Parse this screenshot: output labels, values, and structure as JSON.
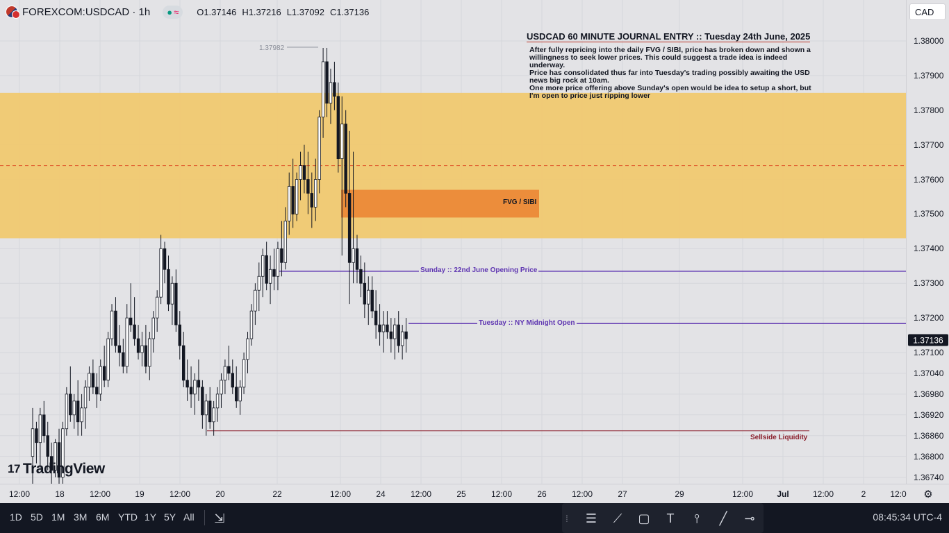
{
  "legend": {
    "symbol": "FOREXCOM:USDCAD · 1h",
    "open": "O1.37146",
    "high": "H1.37216",
    "low": "L1.37092",
    "close": "C1.37136",
    "status_dot": "●",
    "status_wave": "≈"
  },
  "currency_badge": "CAD",
  "journal": {
    "title": "USDCAD 60 MINUTE JOURNAL ENTRY :: Tuesday 24th June, 2025",
    "lines": [
      "After fully repricing into the daily FVG / SIBI, price has broken down and shown a willingness to seek lower prices. This could suggest a trade idea is indeed underway.",
      "Price has consolidated thus far into Tuesday's trading possibly awaiting the USD news big rock at 10am.",
      "One more price offering above Sunday's open would be idea to setup a short, but I'm open to price just ripping lower"
    ]
  },
  "annotations": {
    "fvg_label": "FVG / SIBI",
    "sunday_open_label": "Sunday :: 22nd June Opening Price",
    "tuesday_open_label": "Tuesday :: NY Midnight Open",
    "sellside_label": "Sellside Liquidity",
    "high_label": "1.37982"
  },
  "price_axis": {
    "ticks": [
      "1.38000",
      "1.37900",
      "1.37800",
      "1.37700",
      "1.37600",
      "1.37500",
      "1.37400",
      "1.37300",
      "1.37200",
      "1.37100",
      "1.37040",
      "1.36980",
      "1.36920",
      "1.36860",
      "1.36800",
      "1.36740"
    ],
    "current_price": "1.37136"
  },
  "time_axis": {
    "ticks": [
      "12:00",
      "18",
      "12:00",
      "19",
      "12:00",
      "20",
      "22",
      "12:00",
      "24",
      "12:00",
      "25",
      "12:00",
      "26",
      "12:00",
      "27",
      "29",
      "12:00",
      "Jul",
      "12:00",
      "2",
      "12:0"
    ]
  },
  "logo": {
    "mark": "17",
    "text": "TradingView"
  },
  "bottom_bar": {
    "ranges": [
      "1D",
      "5D",
      "1M",
      "3M",
      "6M",
      "YTD",
      "1Y",
      "5Y",
      "All"
    ],
    "clock": "08:45:34 UTC-4"
  },
  "colors": {
    "zone": "#f0c970",
    "fvg": "#ec8d3b",
    "level_line": "#5e35b1",
    "sellside_line": "#8b1e2b",
    "candle": "#131722",
    "dashed_mid": "#e0572b"
  },
  "chart_data": {
    "type": "candlestick",
    "symbol": "FOREXCOM:USDCAD",
    "interval": "1h",
    "ylim": [
      1.3674,
      1.3808
    ],
    "levels": {
      "premium_zone": [
        1.3743,
        1.3785
      ],
      "premium_zone_mid": 1.3764,
      "fvg_sibi": [
        1.3749,
        1.3757
      ],
      "sunday_open": 1.37335,
      "tuesday_midnight_open": 1.37184,
      "sellside_liquidity": 1.36874,
      "swing_high": 1.37982
    },
    "candles": [
      [
        1.368,
        1.3694,
        1.3672,
        1.3688
      ],
      [
        1.3688,
        1.369,
        1.3678,
        1.3684
      ],
      [
        1.3684,
        1.3694,
        1.3676,
        1.3692
      ],
      [
        1.3692,
        1.3696,
        1.3684,
        1.3686
      ],
      [
        1.3686,
        1.369,
        1.3676,
        1.368
      ],
      [
        1.368,
        1.3684,
        1.3672,
        1.3676
      ],
      [
        1.3676,
        1.3685,
        1.3674,
        1.3684
      ],
      [
        1.3684,
        1.3688,
        1.3672,
        1.3674
      ],
      [
        1.3674,
        1.369,
        1.3672,
        1.3688
      ],
      [
        1.3688,
        1.37,
        1.3686,
        1.3698
      ],
      [
        1.3698,
        1.3706,
        1.369,
        1.3692
      ],
      [
        1.3692,
        1.3698,
        1.3688,
        1.3696
      ],
      [
        1.3696,
        1.3702,
        1.3686,
        1.369
      ],
      [
        1.369,
        1.3698,
        1.3686,
        1.3694
      ],
      [
        1.3694,
        1.3702,
        1.3688,
        1.37
      ],
      [
        1.37,
        1.3706,
        1.3696,
        1.3704
      ],
      [
        1.3704,
        1.3708,
        1.3698,
        1.37
      ],
      [
        1.37,
        1.3704,
        1.3694,
        1.3698
      ],
      [
        1.3698,
        1.3708,
        1.3696,
        1.3706
      ],
      [
        1.3706,
        1.3712,
        1.37,
        1.3702
      ],
      [
        1.3702,
        1.3716,
        1.37,
        1.3714
      ],
      [
        1.3714,
        1.3724,
        1.3712,
        1.3722
      ],
      [
        1.3722,
        1.3726,
        1.371,
        1.3712
      ],
      [
        1.3712,
        1.3718,
        1.3706,
        1.371
      ],
      [
        1.371,
        1.3714,
        1.3704,
        1.3706
      ],
      [
        1.3706,
        1.3724,
        1.3704,
        1.372
      ],
      [
        1.372,
        1.373,
        1.3716,
        1.3718
      ],
      [
        1.3718,
        1.3726,
        1.3712,
        1.3714
      ],
      [
        1.3714,
        1.3718,
        1.3708,
        1.371
      ],
      [
        1.371,
        1.3716,
        1.3706,
        1.3712
      ],
      [
        1.3712,
        1.3718,
        1.3704,
        1.3706
      ],
      [
        1.3706,
        1.3716,
        1.3702,
        1.3714
      ],
      [
        1.3714,
        1.3722,
        1.371,
        1.372
      ],
      [
        1.372,
        1.3728,
        1.3716,
        1.3726
      ],
      [
        1.3726,
        1.3744,
        1.3724,
        1.374
      ],
      [
        1.374,
        1.3742,
        1.373,
        1.3734
      ],
      [
        1.3734,
        1.3738,
        1.3722,
        1.3724
      ],
      [
        1.3724,
        1.3732,
        1.3718,
        1.373
      ],
      [
        1.373,
        1.3734,
        1.3716,
        1.3718
      ],
      [
        1.3718,
        1.3722,
        1.3708,
        1.3712
      ],
      [
        1.3712,
        1.3716,
        1.37,
        1.3702
      ],
      [
        1.3702,
        1.3708,
        1.3696,
        1.37
      ],
      [
        1.37,
        1.3706,
        1.3694,
        1.3698
      ],
      [
        1.3698,
        1.3704,
        1.3692,
        1.3702
      ],
      [
        1.3702,
        1.3708,
        1.3696,
        1.37
      ],
      [
        1.37,
        1.3702,
        1.3688,
        1.3692
      ],
      [
        1.3692,
        1.3698,
        1.3686,
        1.3696
      ],
      [
        1.3696,
        1.37,
        1.3688,
        1.369
      ],
      [
        1.369,
        1.3696,
        1.3686,
        1.3694
      ],
      [
        1.3694,
        1.37,
        1.369,
        1.3698
      ],
      [
        1.3698,
        1.3704,
        1.3694,
        1.3702
      ],
      [
        1.3702,
        1.3708,
        1.3698,
        1.3706
      ],
      [
        1.3706,
        1.3712,
        1.3702,
        1.3704
      ],
      [
        1.3704,
        1.3708,
        1.3698,
        1.37
      ],
      [
        1.37,
        1.3706,
        1.3694,
        1.3696
      ],
      [
        1.3696,
        1.3702,
        1.3692,
        1.37
      ],
      [
        1.37,
        1.371,
        1.3698,
        1.3708
      ],
      [
        1.3708,
        1.3716,
        1.3704,
        1.3714
      ],
      [
        1.3714,
        1.3724,
        1.3712,
        1.3722
      ],
      [
        1.3722,
        1.373,
        1.3718,
        1.3728
      ],
      [
        1.3728,
        1.3736,
        1.3722,
        1.3732
      ],
      [
        1.3732,
        1.374,
        1.3726,
        1.3738
      ],
      [
        1.3738,
        1.3742,
        1.3728,
        1.373
      ],
      [
        1.373,
        1.3738,
        1.3724,
        1.3734
      ],
      [
        1.3734,
        1.374,
        1.3728,
        1.3732
      ],
      [
        1.3732,
        1.3742,
        1.3728,
        1.374
      ],
      [
        1.374,
        1.3748,
        1.3732,
        1.3736
      ],
      [
        1.3736,
        1.3752,
        1.3734,
        1.3748
      ],
      [
        1.3748,
        1.3762,
        1.3744,
        1.3758
      ],
      [
        1.3758,
        1.3766,
        1.3746,
        1.375
      ],
      [
        1.375,
        1.3762,
        1.3748,
        1.376
      ],
      [
        1.376,
        1.3768,
        1.3754,
        1.3764
      ],
      [
        1.3764,
        1.377,
        1.3756,
        1.376
      ],
      [
        1.376,
        1.3768,
        1.375,
        1.3756
      ],
      [
        1.3756,
        1.3762,
        1.3746,
        1.3752
      ],
      [
        1.3752,
        1.3766,
        1.3748,
        1.376
      ],
      [
        1.376,
        1.378,
        1.3756,
        1.3778
      ],
      [
        1.3778,
        1.3798,
        1.3772,
        1.3794
      ],
      [
        1.3794,
        1.3798,
        1.3778,
        1.3782
      ],
      [
        1.3782,
        1.3792,
        1.3776,
        1.3788
      ],
      [
        1.3788,
        1.3794,
        1.378,
        1.3784
      ],
      [
        1.3784,
        1.3788,
        1.3762,
        1.3766
      ],
      [
        1.3766,
        1.3784,
        1.3738,
        1.3776
      ],
      [
        1.3776,
        1.378,
        1.3752,
        1.3756
      ],
      [
        1.3756,
        1.3774,
        1.3724,
        1.3736
      ],
      [
        1.3736,
        1.3768,
        1.373,
        1.374
      ],
      [
        1.374,
        1.3744,
        1.373,
        1.3734
      ],
      [
        1.3734,
        1.3738,
        1.3726,
        1.373
      ],
      [
        1.373,
        1.3736,
        1.372,
        1.3724
      ],
      [
        1.3724,
        1.3732,
        1.3718,
        1.3728
      ],
      [
        1.3728,
        1.3732,
        1.372,
        1.3722
      ],
      [
        1.3722,
        1.3728,
        1.3714,
        1.3718
      ],
      [
        1.3718,
        1.3724,
        1.3712,
        1.3716
      ],
      [
        1.3716,
        1.3722,
        1.371,
        1.3718
      ],
      [
        1.3718,
        1.3722,
        1.3714,
        1.3716
      ],
      [
        1.3716,
        1.372,
        1.371,
        1.3714
      ],
      [
        1.3714,
        1.372,
        1.3708,
        1.3718
      ],
      [
        1.3718,
        1.3722,
        1.371,
        1.3712
      ],
      [
        1.3712,
        1.3718,
        1.3708,
        1.3716
      ],
      [
        1.3716,
        1.372,
        1.371,
        1.3714
      ]
    ]
  }
}
